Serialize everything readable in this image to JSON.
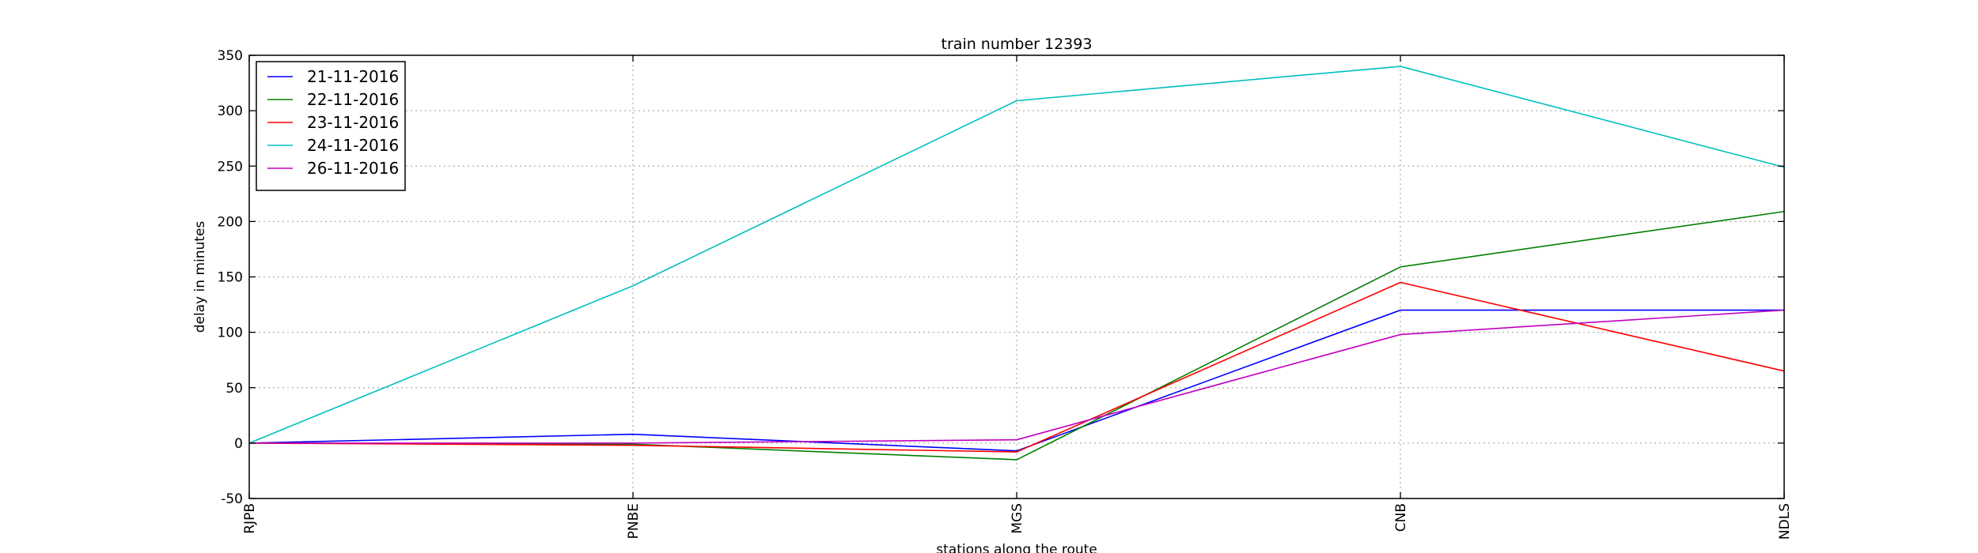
{
  "chart_data": {
    "type": "line",
    "title": "train number 12393",
    "xlabel": "stations along the route",
    "ylabel": "delay in minutes",
    "categories": [
      "RJPB",
      "PNBE",
      "MGS",
      "CNB",
      "NDLS"
    ],
    "ylim": [
      -50,
      350
    ],
    "yticks": [
      -50,
      0,
      50,
      100,
      150,
      200,
      250,
      300,
      350
    ],
    "grid": true,
    "legend_position": "top-left",
    "series": [
      {
        "name": "21-11-2016",
        "color": "#0000ff",
        "values": [
          0,
          8,
          -7,
          120,
          120
        ]
      },
      {
        "name": "22-11-2016",
        "color": "#008000",
        "values": [
          0,
          -1,
          -15,
          159,
          209
        ]
      },
      {
        "name": "23-11-2016",
        "color": "#ff0000",
        "values": [
          0,
          -2,
          -8,
          145,
          65
        ]
      },
      {
        "name": "24-11-2016",
        "color": "#00bfbf",
        "values": [
          0,
          142,
          309,
          340,
          249
        ]
      },
      {
        "name": "26-11-2016",
        "color": "#bf00bf",
        "values": [
          0,
          0,
          3,
          98,
          120
        ]
      }
    ]
  }
}
